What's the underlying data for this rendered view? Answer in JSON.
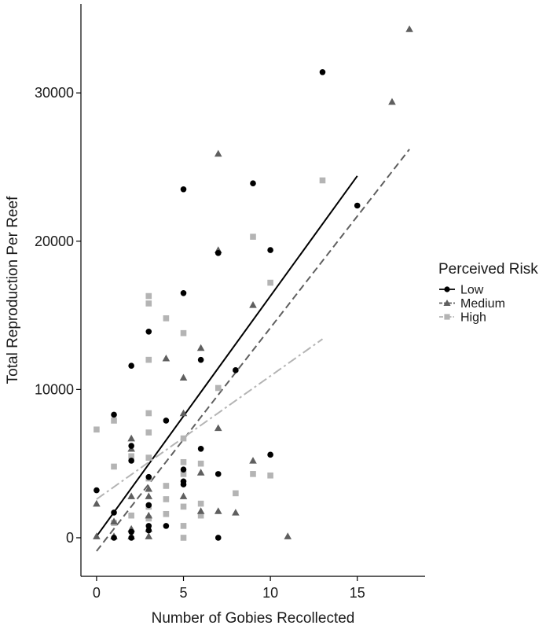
{
  "chart_data": {
    "type": "scatter",
    "xlabel": "Number of Gobies Recollected",
    "ylabel": "Total Reproduction Per Reef",
    "xlim": [
      -0.9,
      18.9
    ],
    "ylim": [
      -2600,
      36000
    ],
    "x_ticks": [
      0,
      5,
      10,
      15
    ],
    "y_ticks": [
      0,
      10000,
      20000,
      30000
    ],
    "x_tick_labels": [
      "0",
      "5",
      "10",
      "15"
    ],
    "y_tick_labels": [
      "0",
      "10000",
      "20000",
      "30000"
    ],
    "grid": false,
    "legend": {
      "title": "Perceived Risk",
      "position": "right"
    },
    "series": [
      {
        "name": "Low",
        "marker": "circle",
        "color": "#000000",
        "line_style": "solid",
        "trend": {
          "x": [
            0,
            15
          ],
          "y": [
            100,
            24400
          ]
        },
        "points": [
          [
            0,
            3200
          ],
          [
            1,
            1700
          ],
          [
            1,
            8300
          ],
          [
            1,
            0
          ],
          [
            2,
            11600
          ],
          [
            2,
            6200
          ],
          [
            2,
            5200
          ],
          [
            2,
            400
          ],
          [
            2,
            0
          ],
          [
            3,
            13900
          ],
          [
            3,
            4100
          ],
          [
            3,
            2200
          ],
          [
            3,
            800
          ],
          [
            3,
            500
          ],
          [
            4,
            7900
          ],
          [
            4,
            800
          ],
          [
            5,
            23500
          ],
          [
            5,
            16500
          ],
          [
            5,
            4600
          ],
          [
            5,
            3800
          ],
          [
            5,
            3600
          ],
          [
            6,
            12000
          ],
          [
            6,
            6000
          ],
          [
            7,
            19200
          ],
          [
            7,
            4300
          ],
          [
            7,
            0
          ],
          [
            8,
            11300
          ],
          [
            9,
            23900
          ],
          [
            10,
            19400
          ],
          [
            10,
            5600
          ],
          [
            13,
            31400
          ],
          [
            15,
            22400
          ]
        ]
      },
      {
        "name": "Medium",
        "marker": "triangle",
        "color": "#5f5f5f",
        "line_style": "dashed",
        "trend": {
          "x": [
            0,
            18
          ],
          "y": [
            -900,
            26200
          ]
        },
        "points": [
          [
            0,
            2300
          ],
          [
            0,
            100
          ],
          [
            1,
            1100
          ],
          [
            1,
            100
          ],
          [
            2,
            6700
          ],
          [
            2,
            6000
          ],
          [
            2,
            2800
          ],
          [
            2,
            600
          ],
          [
            2,
            100
          ],
          [
            3,
            3300
          ],
          [
            3,
            2800
          ],
          [
            3,
            1500
          ],
          [
            3,
            600
          ],
          [
            3,
            100
          ],
          [
            4,
            12100
          ],
          [
            5,
            10800
          ],
          [
            5,
            8400
          ],
          [
            5,
            2800
          ],
          [
            6,
            12800
          ],
          [
            6,
            4400
          ],
          [
            6,
            1800
          ],
          [
            7,
            25900
          ],
          [
            7,
            19400
          ],
          [
            7,
            7400
          ],
          [
            7,
            1800
          ],
          [
            8,
            1700
          ],
          [
            9,
            15700
          ],
          [
            9,
            5200
          ],
          [
            11,
            100
          ],
          [
            17,
            29400
          ],
          [
            18,
            34300
          ]
        ]
      },
      {
        "name": "High",
        "marker": "square",
        "color": "#b4b4b4",
        "line_style": "dotdash",
        "trend": {
          "x": [
            0,
            13
          ],
          "y": [
            2600,
            13400
          ]
        },
        "points": [
          [
            0,
            7300
          ],
          [
            1,
            7900
          ],
          [
            1,
            4800
          ],
          [
            1,
            1000
          ],
          [
            2,
            5500
          ],
          [
            2,
            1500
          ],
          [
            3,
            16300
          ],
          [
            3,
            15800
          ],
          [
            3,
            12000
          ],
          [
            3,
            8400
          ],
          [
            3,
            7100
          ],
          [
            3,
            5400
          ],
          [
            3,
            4000
          ],
          [
            3,
            2100
          ],
          [
            3,
            1300
          ],
          [
            4,
            14800
          ],
          [
            4,
            3500
          ],
          [
            4,
            2600
          ],
          [
            4,
            1600
          ],
          [
            5,
            13800
          ],
          [
            5,
            6700
          ],
          [
            5,
            5100
          ],
          [
            5,
            4300
          ],
          [
            5,
            2100
          ],
          [
            5,
            800
          ],
          [
            5,
            0
          ],
          [
            6,
            5000
          ],
          [
            6,
            2300
          ],
          [
            6,
            1500
          ],
          [
            7,
            10100
          ],
          [
            8,
            3000
          ],
          [
            9,
            20300
          ],
          [
            9,
            4300
          ],
          [
            10,
            17200
          ],
          [
            10,
            4200
          ],
          [
            13,
            24100
          ]
        ]
      }
    ]
  }
}
